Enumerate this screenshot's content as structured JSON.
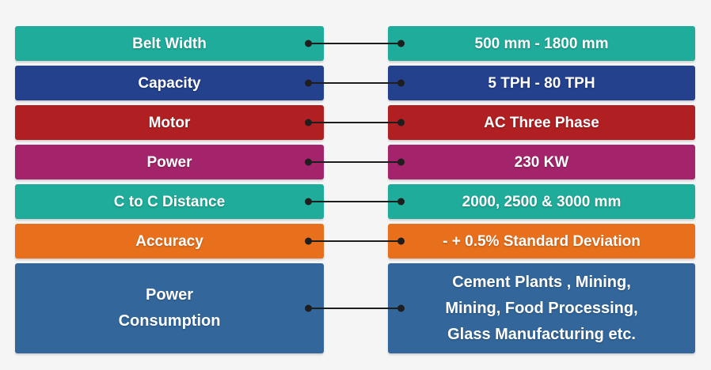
{
  "page": {
    "background_color": "#f6f5f6",
    "connector_color": "#1e1e1e",
    "text_color": "#ffffff"
  },
  "spec_table": {
    "rows": [
      {
        "name": "belt-width",
        "color": "#1fac9a",
        "label_lines": [
          "Belt Width"
        ],
        "value_lines": [
          "500 mm - 1800 mm"
        ],
        "tall": false
      },
      {
        "name": "capacity",
        "color": "#24418e",
        "label_lines": [
          "Capacity"
        ],
        "value_lines": [
          "5 TPH - 80 TPH"
        ],
        "tall": false
      },
      {
        "name": "motor",
        "color": "#b01f22",
        "label_lines": [
          "Motor"
        ],
        "value_lines": [
          "AC Three Phase"
        ],
        "tall": false
      },
      {
        "name": "power",
        "color": "#a3246a",
        "label_lines": [
          "Power"
        ],
        "value_lines": [
          "230 KW"
        ],
        "tall": false
      },
      {
        "name": "c-to-c-distance",
        "color": "#1fac9a",
        "label_lines": [
          "C to C Distance"
        ],
        "value_lines": [
          "2000, 2500 & 3000 mm"
        ],
        "tall": false
      },
      {
        "name": "accuracy",
        "color": "#e8701c",
        "label_lines": [
          "Accuracy"
        ],
        "value_lines": [
          "- + 0.5% Standard Deviation"
        ],
        "tall": false
      },
      {
        "name": "power-consumption",
        "color": "#33679b",
        "label_lines": [
          "Power",
          "Consumption"
        ],
        "value_lines": [
          "Cement Plants , Mining,",
          "Mining, Food Processing,",
          "Glass Manufacturing etc."
        ],
        "tall": true
      }
    ]
  }
}
